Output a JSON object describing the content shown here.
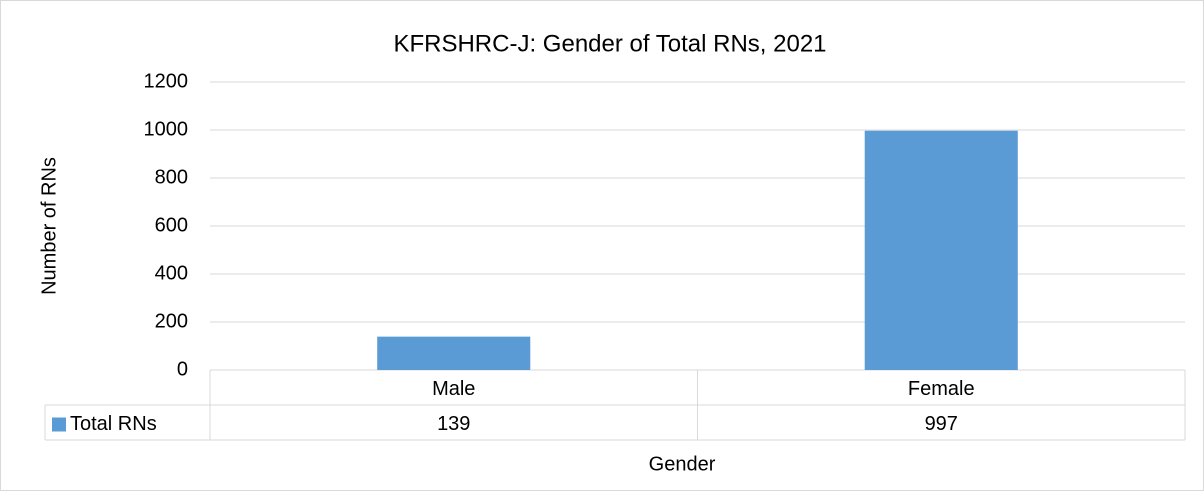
{
  "chart_data": {
    "type": "bar",
    "title": "KFRSHRC-J: Gender of Total RNs, 2021",
    "x_label": "Gender",
    "y_label": "Number of RNs",
    "categories": [
      "Male",
      "Female"
    ],
    "series": [
      {
        "name": "Total RNs",
        "color": "#5b9bd5",
        "values": [
          139,
          997
        ]
      }
    ],
    "ylim": [
      0,
      1200
    ],
    "yticks": [
      0,
      200,
      400,
      600,
      800,
      1000,
      1200
    ],
    "grid": true,
    "data_table": true
  }
}
